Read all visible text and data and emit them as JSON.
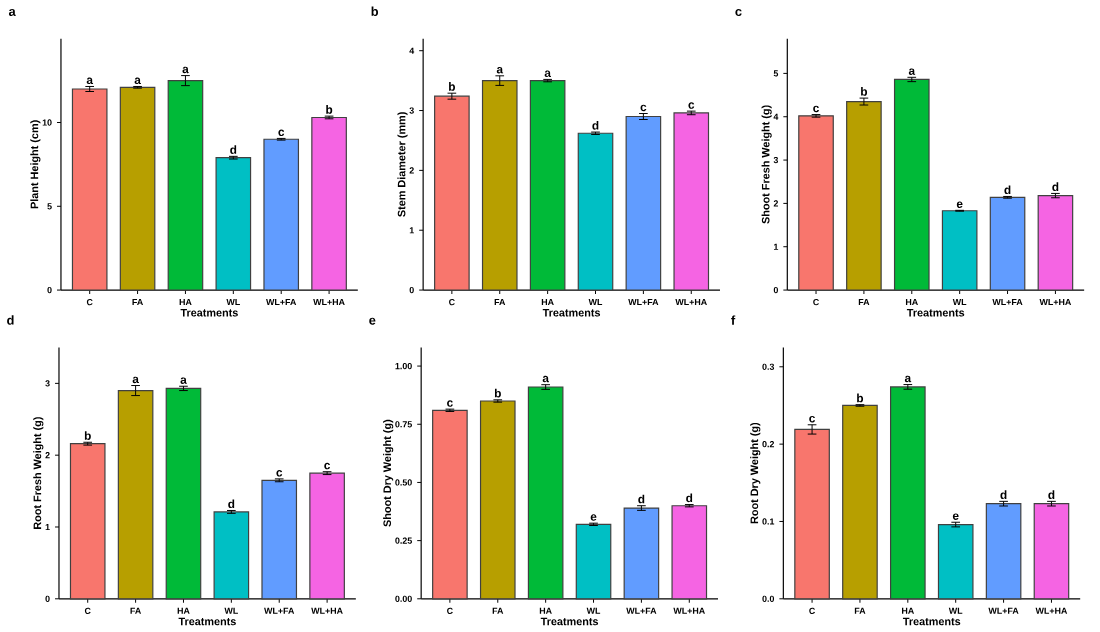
{
  "chart_data": [
    {
      "type": "bar",
      "title": "a",
      "xlabel": "Treatments",
      "ylabel": "Plant Height (cm)",
      "categories": [
        "C",
        "FA",
        "HA",
        "WL",
        "WL+FA",
        "WL+HA"
      ],
      "values": [
        12.0,
        12.1,
        12.5,
        7.9,
        9.0,
        10.3
      ],
      "errors": [
        0.15,
        0.05,
        0.3,
        0.08,
        0.05,
        0.08
      ],
      "colors": [
        "#F8766D",
        "#B79F00",
        "#00BA38",
        "#00BFC4",
        "#619CFF",
        "#F564E3"
      ],
      "ylim": [
        0,
        15
      ],
      "yticks": [
        0,
        5,
        10
      ],
      "annotations": [
        {
          "text": "a",
          "x": "C",
          "y": 12.0
        },
        {
          "text": "a",
          "x": "FA",
          "y": 12.1
        },
        {
          "text": "a",
          "x": "HA",
          "y": 12.5
        },
        {
          "text": "d",
          "x": "WL",
          "y": 7.9
        },
        {
          "text": "c",
          "x": "WL+FA",
          "y": 9.0
        },
        {
          "text": "b",
          "x": "WL+HA",
          "y": 10.3
        }
      ]
    },
    {
      "type": "bar",
      "title": "b",
      "xlabel": "Treatments",
      "ylabel": "Stem Diameter (mm)",
      "categories": [
        "C",
        "FA",
        "HA",
        "WL",
        "WL+FA",
        "WL+HA"
      ],
      "values": [
        3.24,
        3.5,
        3.5,
        2.62,
        2.9,
        2.96
      ],
      "errors": [
        0.05,
        0.08,
        0.02,
        0.02,
        0.05,
        0.03
      ],
      "colors": [
        "#F8766D",
        "#B79F00",
        "#00BA38",
        "#00BFC4",
        "#619CFF",
        "#F564E3"
      ],
      "ylim": [
        0,
        4.2
      ],
      "yticks": [
        0,
        1,
        2,
        3,
        4
      ],
      "annotations": [
        {
          "text": "b",
          "x": "C",
          "y": 3.24
        },
        {
          "text": "a",
          "x": "FA",
          "y": 3.5
        },
        {
          "text": "a",
          "x": "HA",
          "y": 3.5
        },
        {
          "text": "d",
          "x": "WL",
          "y": 2.62
        },
        {
          "text": "c",
          "x": "WL+FA",
          "y": 2.9
        },
        {
          "text": "c",
          "x": "WL+HA",
          "y": 2.96
        }
      ]
    },
    {
      "type": "bar",
      "title": "c",
      "xlabel": "Treatments",
      "ylabel": "Shoot Fresh Weight (g)",
      "categories": [
        "C",
        "FA",
        "HA",
        "WL",
        "WL+FA",
        "WL+HA"
      ],
      "values": [
        4.02,
        4.35,
        4.86,
        1.83,
        2.14,
        2.18
      ],
      "errors": [
        0.03,
        0.08,
        0.05,
        0.01,
        0.02,
        0.05
      ],
      "colors": [
        "#F8766D",
        "#B79F00",
        "#00BA38",
        "#00BFC4",
        "#619CFF",
        "#F564E3"
      ],
      "ylim": [
        0,
        5.8
      ],
      "yticks": [
        0,
        1,
        2,
        3,
        4,
        5
      ],
      "annotations": [
        {
          "text": "c",
          "x": "C",
          "y": 4.02
        },
        {
          "text": "b",
          "x": "FA",
          "y": 4.35
        },
        {
          "text": "a",
          "x": "HA",
          "y": 4.86
        },
        {
          "text": "e",
          "x": "WL",
          "y": 1.83
        },
        {
          "text": "d",
          "x": "WL+FA",
          "y": 2.14
        },
        {
          "text": "d",
          "x": "WL+HA",
          "y": 2.18
        }
      ]
    },
    {
      "type": "bar",
      "title": "d",
      "xlabel": "Treatments",
      "ylabel": "Root Fresh Weight (g)",
      "categories": [
        "C",
        "FA",
        "HA",
        "WL",
        "WL+FA",
        "WL+HA"
      ],
      "values": [
        2.16,
        2.9,
        2.93,
        1.21,
        1.65,
        1.75
      ],
      "errors": [
        0.02,
        0.07,
        0.03,
        0.02,
        0.02,
        0.02
      ],
      "colors": [
        "#F8766D",
        "#B79F00",
        "#00BA38",
        "#00BFC4",
        "#619CFF",
        "#F564E3"
      ],
      "ylim": [
        0,
        3.5
      ],
      "yticks": [
        0,
        1,
        2,
        3
      ],
      "annotations": [
        {
          "text": "b",
          "x": "C",
          "y": 2.16
        },
        {
          "text": "a",
          "x": "FA",
          "y": 2.9
        },
        {
          "text": "a",
          "x": "HA",
          "y": 2.93
        },
        {
          "text": "d",
          "x": "WL",
          "y": 1.21
        },
        {
          "text": "c",
          "x": "WL+FA",
          "y": 1.65
        },
        {
          "text": "c",
          "x": "WL+HA",
          "y": 1.75
        }
      ]
    },
    {
      "type": "bar",
      "title": "e",
      "xlabel": "Treatments",
      "ylabel": "Shoot Dry Weight (g)",
      "categories": [
        "C",
        "FA",
        "HA",
        "WL",
        "WL+FA",
        "WL+HA"
      ],
      "values": [
        0.81,
        0.85,
        0.91,
        0.32,
        0.39,
        0.4
      ],
      "errors": [
        0.005,
        0.005,
        0.01,
        0.005,
        0.01,
        0.005
      ],
      "colors": [
        "#F8766D",
        "#B79F00",
        "#00BA38",
        "#00BFC4",
        "#619CFF",
        "#F564E3"
      ],
      "ylim": [
        0,
        1.08
      ],
      "yticks": [
        {
          "value": 0,
          "label": "0.00"
        },
        {
          "value": 0.25,
          "label": "0.25"
        },
        {
          "value": 0.5,
          "label": "0.50"
        },
        {
          "value": 0.75,
          "label": "0.75"
        },
        {
          "value": 1,
          "label": "1.00"
        }
      ],
      "annotations": [
        {
          "text": "c",
          "x": "C",
          "y": 0.81
        },
        {
          "text": "b",
          "x": "FA",
          "y": 0.85
        },
        {
          "text": "a",
          "x": "HA",
          "y": 0.91
        },
        {
          "text": "e",
          "x": "WL",
          "y": 0.32
        },
        {
          "text": "d",
          "x": "WL+FA",
          "y": 0.39
        },
        {
          "text": "d",
          "x": "WL+HA",
          "y": 0.4
        }
      ]
    },
    {
      "type": "bar",
      "title": "f",
      "xlabel": "Treatments",
      "ylabel": "Root Dry Weight (g)",
      "categories": [
        "C",
        "FA",
        "HA",
        "WL",
        "WL+FA",
        "WL+HA"
      ],
      "values": [
        0.219,
        0.25,
        0.274,
        0.096,
        0.123,
        0.123
      ],
      "errors": [
        0.006,
        0.001,
        0.003,
        0.003,
        0.003,
        0.003
      ],
      "colors": [
        "#F8766D",
        "#B79F00",
        "#00BA38",
        "#00BFC4",
        "#619CFF",
        "#F564E3"
      ],
      "ylim": [
        0,
        0.325
      ],
      "yticks": [
        {
          "value": 0,
          "label": "0.0"
        },
        {
          "value": 0.1,
          "label": "0.1"
        },
        {
          "value": 0.2,
          "label": "0.2"
        },
        {
          "value": 0.3,
          "label": "0.3"
        }
      ],
      "annotations": [
        {
          "text": "c",
          "x": "C",
          "y": 0.219
        },
        {
          "text": "b",
          "x": "FA",
          "y": 0.25
        },
        {
          "text": "a",
          "x": "HA",
          "y": 0.274
        },
        {
          "text": "e",
          "x": "WL",
          "y": 0.096
        },
        {
          "text": "d",
          "x": "WL+FA",
          "y": 0.123
        },
        {
          "text": "d",
          "x": "WL+HA",
          "y": 0.123
        }
      ]
    }
  ]
}
